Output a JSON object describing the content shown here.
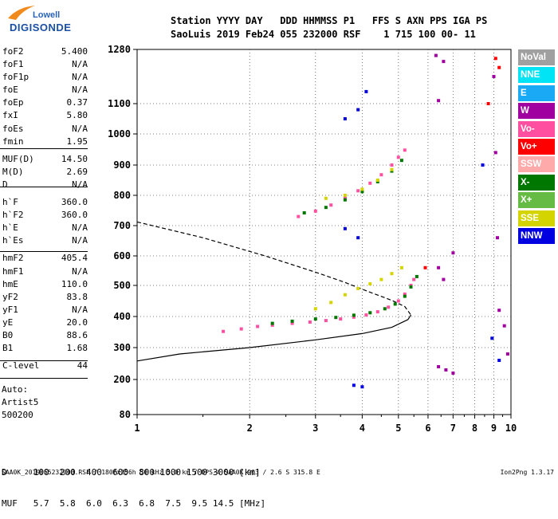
{
  "logo": {
    "line1": "Lowell",
    "line2": "DIGISONDE"
  },
  "header": {
    "line1": "Station YYYY DAY   DDD HHMMSS P1   FFS S AXN PPS IGA PS",
    "line2": "SaoLuis 2019 Feb24 055 232000 RSF    1 715 100 00- 11"
  },
  "params": [
    {
      "k": "foF2",
      "v": "5.400"
    },
    {
      "k": "foF1",
      "v": "N/A"
    },
    {
      "k": "foF1p",
      "v": "N/A"
    },
    {
      "k": "foE",
      "v": "N/A"
    },
    {
      "k": "foEp",
      "v": "0.37"
    },
    {
      "k": "fxI",
      "v": "5.80"
    },
    {
      "k": "foEs",
      "v": "N/A"
    },
    {
      "k": "fmin",
      "v": "1.95"
    },
    {
      "k": "MUF(D)",
      "v": "14.50"
    },
    {
      "k": "M(D)",
      "v": "2.69"
    },
    {
      "k": "D",
      "v": "N/A"
    },
    {
      "k": "h`F",
      "v": "360.0"
    },
    {
      "k": "h`F2",
      "v": "360.0"
    },
    {
      "k": "h`E",
      "v": "N/A"
    },
    {
      "k": "h`Es",
      "v": "N/A"
    },
    {
      "k": "hmF2",
      "v": "405.4"
    },
    {
      "k": "hmF1",
      "v": "N/A"
    },
    {
      "k": "hmE",
      "v": "110.0"
    },
    {
      "k": "yF2",
      "v": "83.8"
    },
    {
      "k": "yF1",
      "v": "N/A"
    },
    {
      "k": "yE",
      "v": "20.0"
    },
    {
      "k": "B0",
      "v": "88.6"
    },
    {
      "k": "B1",
      "v": "1.68"
    },
    {
      "k": "C-level",
      "v": "44"
    }
  ],
  "auto": [
    "Auto:",
    "Artist5",
    "500200"
  ],
  "dmuf": {
    "line1": "D     100  200  400  600  800 1000 1500 3000 [km]",
    "line2": "MUF   5.7  5.8  6.0  6.3  6.8  7.5  9.5 14.5 [MHz]"
  },
  "footer": {
    "left": "SAA0K_2019055232000.RSF / 180fx256h 50 kHz 5.0 km / DPS-4 SAA0K 903 / 2.6 S 315.8 E",
    "right": "Ion2Png 1.3.17"
  },
  "legend": [
    {
      "label": "NoVal",
      "color": "#a0a0a0"
    },
    {
      "label": "NNE",
      "color": "#00e4f5"
    },
    {
      "label": "E",
      "color": "#1aaaf5"
    },
    {
      "label": "W",
      "color": "#a000a0"
    },
    {
      "label": "Vo-",
      "color": "#ff4fa0"
    },
    {
      "label": "Vo+",
      "color": "#ff0000"
    },
    {
      "label": "SSW",
      "color": "#ffaaaa"
    },
    {
      "label": "X-",
      "color": "#007800"
    },
    {
      "label": "X+",
      "color": "#66bb44"
    },
    {
      "label": "SSE",
      "color": "#d4d400"
    },
    {
      "label": "NNW",
      "color": "#0000e0"
    }
  ],
  "chart_data": {
    "type": "scatter",
    "title": "",
    "xlabel": "",
    "ylabel": "",
    "x_scale": "log",
    "xlim": [
      1,
      10
    ],
    "ylim": [
      80,
      1280
    ],
    "x_ticks": [
      "1",
      "2",
      "3",
      "4",
      "5",
      "6",
      "7",
      "8",
      "9",
      "10"
    ],
    "y_ticks": [
      "80",
      "200",
      "300",
      "400",
      "500",
      "600",
      "700",
      "800",
      "900",
      "1000",
      "1100",
      "1280"
    ],
    "grid": "dotted",
    "series": [
      {
        "name": "Vo-",
        "color": "#ff4fa0",
        "points": [
          [
            1.7,
            352
          ],
          [
            1.9,
            360
          ],
          [
            2.1,
            368
          ],
          [
            2.3,
            372
          ],
          [
            2.6,
            378
          ],
          [
            2.9,
            382
          ],
          [
            3.2,
            387
          ],
          [
            3.5,
            392
          ],
          [
            3.8,
            398
          ],
          [
            4.1,
            405
          ],
          [
            4.4,
            415
          ],
          [
            4.7,
            430
          ],
          [
            5.0,
            450
          ],
          [
            5.2,
            472
          ],
          [
            5.4,
            500
          ],
          [
            5.5,
            520
          ],
          [
            2.7,
            730
          ],
          [
            3.0,
            748
          ],
          [
            3.3,
            768
          ],
          [
            3.6,
            790
          ],
          [
            3.9,
            815
          ],
          [
            4.2,
            840
          ],
          [
            4.5,
            868
          ],
          [
            4.8,
            900
          ],
          [
            5.0,
            925
          ],
          [
            5.2,
            948
          ]
        ]
      },
      {
        "name": "X-",
        "color": "#007800",
        "points": [
          [
            2.3,
            378
          ],
          [
            2.6,
            385
          ],
          [
            3.0,
            392
          ],
          [
            3.4,
            397
          ],
          [
            3.8,
            404
          ],
          [
            4.2,
            412
          ],
          [
            4.6,
            425
          ],
          [
            4.9,
            440
          ],
          [
            5.2,
            465
          ],
          [
            5.4,
            495
          ],
          [
            5.6,
            530
          ],
          [
            2.8,
            742
          ],
          [
            3.2,
            760
          ],
          [
            3.6,
            785
          ],
          [
            4.0,
            812
          ],
          [
            4.4,
            845
          ],
          [
            4.8,
            880
          ],
          [
            5.1,
            915
          ]
        ]
      },
      {
        "name": "SSE",
        "color": "#d4d400",
        "points": [
          [
            3.0,
            425
          ],
          [
            3.3,
            445
          ],
          [
            3.6,
            470
          ],
          [
            3.9,
            490
          ],
          [
            4.2,
            505
          ],
          [
            4.5,
            520
          ],
          [
            4.8,
            540
          ],
          [
            5.1,
            560
          ],
          [
            3.2,
            790
          ],
          [
            3.6,
            800
          ],
          [
            4.0,
            820
          ],
          [
            4.4,
            850
          ],
          [
            4.8,
            885
          ]
        ]
      },
      {
        "name": "W",
        "color": "#a000a0",
        "points": [
          [
            6.3,
            1260
          ],
          [
            6.4,
            1110
          ],
          [
            6.6,
            1240
          ],
          [
            6.4,
            560
          ],
          [
            6.6,
            520
          ],
          [
            7.0,
            610
          ],
          [
            6.4,
            240
          ],
          [
            6.7,
            230
          ],
          [
            7.0,
            220
          ],
          [
            9.0,
            1190
          ],
          [
            9.1,
            940
          ],
          [
            9.2,
            660
          ],
          [
            9.3,
            420
          ],
          [
            9.6,
            370
          ],
          [
            9.8,
            280
          ]
        ]
      },
      {
        "name": "NNW",
        "color": "#0000e0",
        "points": [
          [
            3.6,
            1050
          ],
          [
            3.9,
            1080
          ],
          [
            4.1,
            1140
          ],
          [
            3.6,
            690
          ],
          [
            3.9,
            660
          ],
          [
            3.8,
            180
          ],
          [
            4.0,
            175
          ],
          [
            8.4,
            900
          ],
          [
            8.9,
            330
          ],
          [
            9.3,
            260
          ]
        ]
      },
      {
        "name": "Vo+",
        "color": "#ff0000",
        "points": [
          [
            9.1,
            1250
          ],
          [
            9.3,
            1220
          ],
          [
            8.7,
            1100
          ],
          [
            5.9,
            560
          ]
        ]
      }
    ],
    "curves": [
      {
        "name": "profile",
        "style": "solid",
        "points": [
          [
            1.0,
            258
          ],
          [
            1.3,
            280
          ],
          [
            2.0,
            300
          ],
          [
            3.0,
            325
          ],
          [
            4.0,
            345
          ],
          [
            4.8,
            365
          ],
          [
            5.3,
            390
          ],
          [
            5.4,
            405
          ]
        ]
      },
      {
        "name": "profile",
        "style": "dashed",
        "points": [
          [
            1.0,
            712
          ],
          [
            1.5,
            660
          ],
          [
            2.2,
            600
          ],
          [
            3.0,
            545
          ],
          [
            3.6,
            510
          ],
          [
            4.2,
            478
          ],
          [
            4.8,
            452
          ],
          [
            5.2,
            432
          ],
          [
            5.4,
            405
          ]
        ]
      }
    ]
  }
}
